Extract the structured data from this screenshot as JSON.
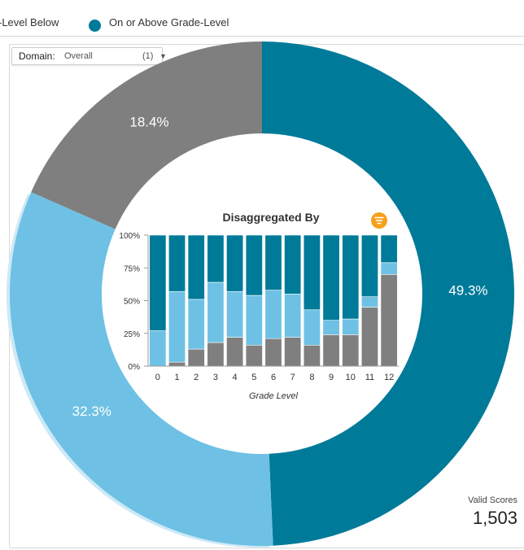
{
  "legend": {
    "items": [
      {
        "label": "-Level Below",
        "color": "#6ec1e4"
      },
      {
        "label": "On or Above Grade-Level",
        "color": "#007a99"
      }
    ]
  },
  "filter": {
    "label": "Domain:",
    "value": "Overall",
    "count": "(1)"
  },
  "valid_scores": {
    "label": "Valid Scores",
    "value": "1,503"
  },
  "chart_data": [
    {
      "type": "pie",
      "variant": "donut",
      "slices": [
        {
          "label": "49.3%",
          "value": 49.3,
          "color": "#007a99"
        },
        {
          "label": "32.3%",
          "value": 32.3,
          "color": "#6ec1e4"
        },
        {
          "label": "18.4%",
          "value": 18.4,
          "color": "#7f7f7f"
        }
      ]
    },
    {
      "type": "bar",
      "stacked": true,
      "title": "Disaggregated By",
      "xlabel": "Grade Level",
      "ylabel": "",
      "ylim": [
        0,
        100
      ],
      "yticks": [
        "0%",
        "25%",
        "50%",
        "75%",
        "100%"
      ],
      "categories": [
        "0",
        "1",
        "2",
        "3",
        "4",
        "5",
        "6",
        "7",
        "8",
        "9",
        "10",
        "11",
        "12"
      ],
      "series": [
        {
          "color": "#7f7f7f",
          "values": [
            0,
            3,
            13,
            18,
            22,
            16,
            21,
            22,
            16,
            24,
            24,
            45,
            70
          ]
        },
        {
          "color": "#6ec1e4",
          "values": [
            27,
            54,
            38,
            46,
            35,
            38,
            37,
            33,
            27,
            11,
            12,
            8,
            9
          ]
        },
        {
          "color": "#007a99",
          "values": [
            73,
            43,
            49,
            36,
            43,
            46,
            42,
            45,
            57,
            65,
            64,
            47,
            21
          ]
        }
      ]
    }
  ]
}
